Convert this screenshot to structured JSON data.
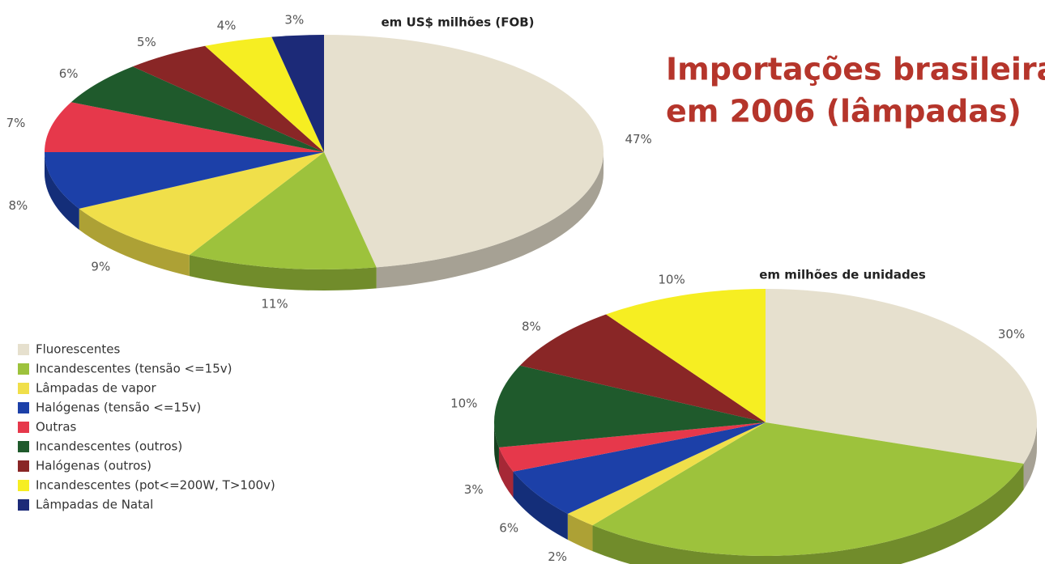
{
  "title_lines": [
    "Importações brasileiras",
    "em 2006 (lâmpadas)"
  ],
  "chart_data": [
    {
      "type": "pie",
      "subtitle": "em US$ milhões (FOB)",
      "categories": [
        "Fluorescentes",
        "Incandescentes (tensão <=15v)",
        "Lâmpadas de vapor",
        "Halógenas (tensão <=15v)",
        "Outras",
        "Incandescentes (outros)",
        "Halógenas (outros)",
        "Incandescentes (pot<=200W, T>100v)",
        "Lâmpadas de Natal"
      ],
      "colors": [
        "#e6e0ce",
        "#9dc23c",
        "#f0df4a",
        "#1c40a8",
        "#e6384b",
        "#1f5a2c",
        "#892626",
        "#f6ee22",
        "#1c2a78"
      ],
      "values": [
        47,
        11,
        9,
        8,
        7,
        6,
        5,
        4,
        3
      ],
      "value_labels": [
        "47%",
        "11%",
        "9%",
        "8%",
        "7%",
        "6%",
        "5%",
        "4%",
        "3%"
      ]
    },
    {
      "type": "pie",
      "subtitle": "em milhões de unidades",
      "values": [
        30,
        31,
        2,
        6,
        3,
        10,
        8,
        10
      ],
      "value_labels": [
        "30%",
        null,
        "2%",
        "6%",
        "3%",
        "10%",
        "8%",
        "10%"
      ]
    }
  ]
}
